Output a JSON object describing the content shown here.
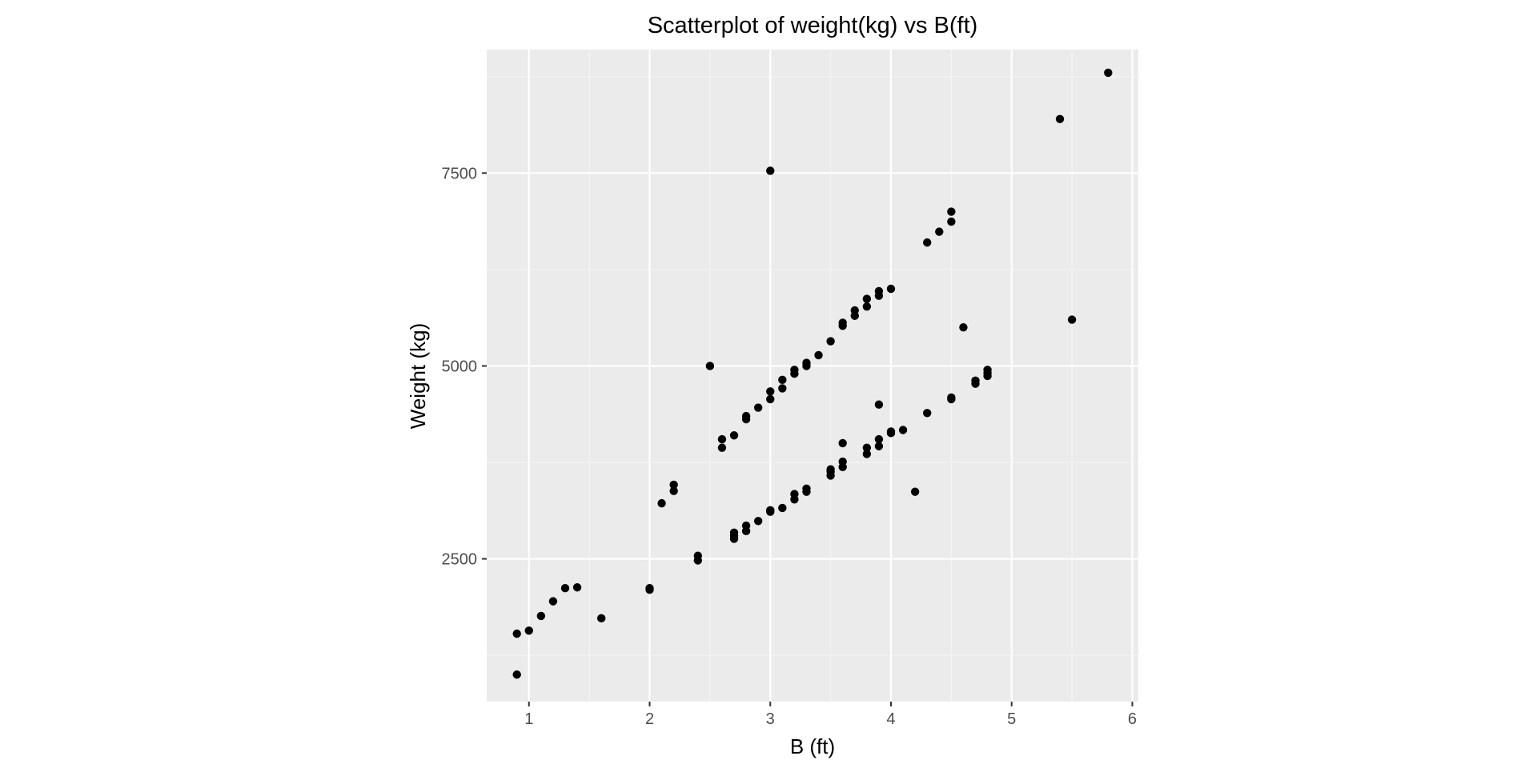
{
  "chart_data": {
    "type": "scatter",
    "title": "Scatterplot of weight(kg) vs B(ft)",
    "xlabel": "B (ft)",
    "ylabel": "Weight (kg)",
    "xlim": [
      0.65,
      6.05
    ],
    "ylim": [
      650,
      9100
    ],
    "xticks": [
      1,
      2,
      3,
      4,
      5,
      6
    ],
    "xtick_labels": [
      "1",
      "2",
      "3",
      "4",
      "5",
      "6"
    ],
    "yticks": [
      2500,
      5000,
      7500
    ],
    "ytick_labels": [
      "2500",
      "5000",
      "7500"
    ],
    "grid": true,
    "legend": "none",
    "colors": {
      "panel_background": "#ebebeb",
      "grid_major": "#ffffff",
      "grid_minor": "#f5f5f5",
      "point": "#000000",
      "tick": "#333333"
    },
    "series": [
      {
        "points": [
          [
            0.9,
            1000
          ],
          [
            0.9,
            1530
          ],
          [
            1.0,
            1570
          ],
          [
            1.1,
            1760
          ],
          [
            1.2,
            1950
          ],
          [
            1.3,
            2120
          ],
          [
            1.4,
            2130
          ],
          [
            1.6,
            1730
          ],
          [
            2.0,
            2100
          ],
          [
            2.0,
            2120
          ],
          [
            2.1,
            3220
          ],
          [
            2.2,
            3380
          ],
          [
            2.2,
            3460
          ],
          [
            2.4,
            2480
          ],
          [
            2.4,
            2540
          ],
          [
            2.5,
            5000
          ],
          [
            2.6,
            3940
          ],
          [
            2.6,
            4050
          ],
          [
            2.7,
            2760
          ],
          [
            2.7,
            2800
          ],
          [
            2.7,
            2840
          ],
          [
            2.7,
            4100
          ],
          [
            2.8,
            2860
          ],
          [
            2.8,
            2930
          ],
          [
            2.8,
            4310
          ],
          [
            2.8,
            4350
          ],
          [
            2.9,
            2990
          ],
          [
            2.9,
            4460
          ],
          [
            3.0,
            3110
          ],
          [
            3.0,
            3130
          ],
          [
            3.0,
            4570
          ],
          [
            3.0,
            4670
          ],
          [
            3.0,
            7530
          ],
          [
            3.1,
            3160
          ],
          [
            3.1,
            4710
          ],
          [
            3.1,
            4820
          ],
          [
            3.2,
            3270
          ],
          [
            3.2,
            3340
          ],
          [
            3.2,
            4900
          ],
          [
            3.2,
            4950
          ],
          [
            3.3,
            3370
          ],
          [
            3.3,
            3410
          ],
          [
            3.3,
            5000
          ],
          [
            3.3,
            5040
          ],
          [
            3.4,
            5140
          ],
          [
            3.5,
            3580
          ],
          [
            3.5,
            3630
          ],
          [
            3.5,
            3660
          ],
          [
            3.5,
            5320
          ],
          [
            3.6,
            3690
          ],
          [
            3.6,
            3760
          ],
          [
            3.6,
            4000
          ],
          [
            3.6,
            5520
          ],
          [
            3.6,
            5560
          ],
          [
            3.7,
            5650
          ],
          [
            3.7,
            5720
          ],
          [
            3.8,
            3860
          ],
          [
            3.8,
            3940
          ],
          [
            3.8,
            5770
          ],
          [
            3.8,
            5870
          ],
          [
            3.9,
            3960
          ],
          [
            3.9,
            4050
          ],
          [
            3.9,
            4500
          ],
          [
            3.9,
            5910
          ],
          [
            3.9,
            5970
          ],
          [
            4.0,
            4130
          ],
          [
            4.0,
            4150
          ],
          [
            4.0,
            6000
          ],
          [
            4.1,
            4170
          ],
          [
            4.2,
            3370
          ],
          [
            4.3,
            4390
          ],
          [
            4.3,
            6600
          ],
          [
            4.4,
            6740
          ],
          [
            4.5,
            4570
          ],
          [
            4.5,
            4590
          ],
          [
            4.5,
            6870
          ],
          [
            4.5,
            7000
          ],
          [
            4.6,
            5500
          ],
          [
            4.7,
            4770
          ],
          [
            4.7,
            4810
          ],
          [
            4.8,
            4870
          ],
          [
            4.8,
            4910
          ],
          [
            4.8,
            4950
          ],
          [
            5.4,
            8200
          ],
          [
            5.5,
            5600
          ],
          [
            5.8,
            8800
          ]
        ]
      }
    ]
  }
}
